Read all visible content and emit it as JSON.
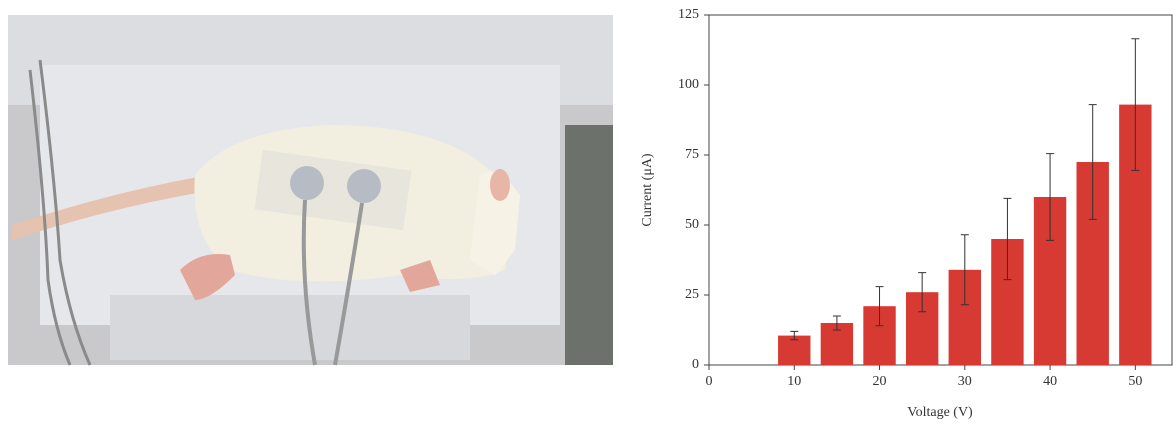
{
  "chart_data": {
    "type": "bar",
    "xlabel": "Voltage (V)",
    "ylabel": "Current (μA)",
    "x": [
      10,
      15,
      20,
      25,
      30,
      35,
      40,
      45,
      50
    ],
    "values": [
      10.5,
      15,
      21,
      26,
      34,
      45,
      60,
      72.5,
      93
    ],
    "errors": [
      1.5,
      2.5,
      7,
      7,
      12.5,
      14.5,
      15.5,
      20.5,
      23.5
    ],
    "color": "#d63a32",
    "xlim": [
      0,
      54.3
    ],
    "ylim": [
      0,
      125
    ],
    "xticks": [
      0,
      10,
      20,
      30,
      40,
      50
    ],
    "yticks": [
      0,
      25,
      50,
      75,
      100,
      125
    ]
  }
}
